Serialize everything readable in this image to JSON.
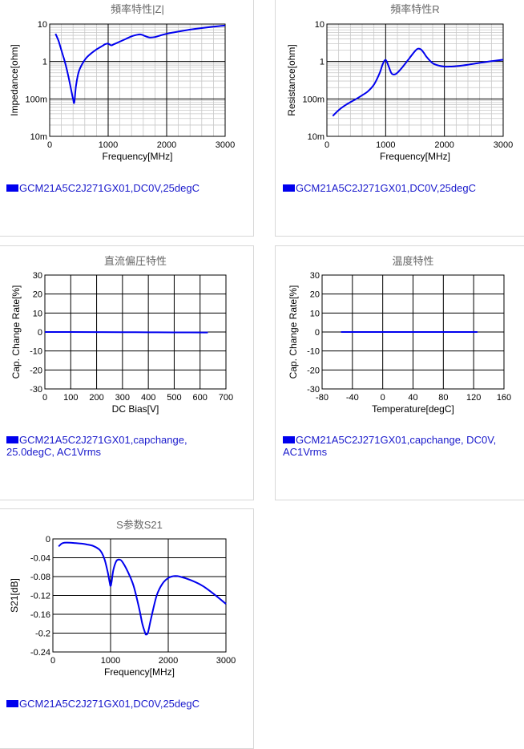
{
  "colors": {
    "series": "#0000ee",
    "legend_text": "#1a1acc",
    "grid_major": "#000000",
    "grid_minor": "#c8c8c8",
    "title": "#666666"
  },
  "chart_data": [
    {
      "id": "impedance",
      "type": "line",
      "title": "頻率特性|Z|",
      "xlabel": "Frequency[MHz]",
      "ylabel": "Impedance[ohm]",
      "xlim": [
        0,
        3000
      ],
      "ylim": [
        0.01,
        10
      ],
      "y_scale": "log",
      "x_ticks": [
        0,
        1000,
        2000,
        3000
      ],
      "x_tick_labels": [
        "0",
        "1000",
        "2000",
        "3000"
      ],
      "y_ticks": [
        0.01,
        0.1,
        1,
        10
      ],
      "y_tick_labels": [
        "10m",
        "100m",
        "1",
        "10"
      ],
      "grid": true,
      "legend": "GCM21A5C2J271GX01,DC0V,25degC",
      "series": [
        {
          "x": [
            100,
            150,
            200,
            250,
            300,
            350,
            380,
            400,
            420,
            450,
            500,
            600,
            700,
            800,
            900,
            950,
            1000,
            1050,
            1100,
            1200,
            1300,
            1400,
            1500,
            1550,
            1600,
            1700,
            1800,
            1900,
            2000,
            2200,
            2400,
            2600,
            2800,
            3000
          ],
          "y": [
            5.5,
            3.6,
            2.0,
            1.1,
            0.55,
            0.24,
            0.14,
            0.1,
            0.08,
            0.22,
            0.55,
            1.1,
            1.6,
            2.1,
            2.6,
            2.9,
            3.0,
            2.7,
            2.9,
            3.4,
            4.0,
            4.7,
            5.2,
            5.3,
            5.0,
            4.4,
            4.5,
            5.0,
            5.5,
            6.3,
            7.1,
            7.8,
            8.5,
            9.2
          ]
        }
      ]
    },
    {
      "id": "resistance",
      "type": "line",
      "title": "頻率特性R",
      "xlabel": "Frequency[MHz]",
      "ylabel": "Resistance[ohm]",
      "xlim": [
        0,
        3000
      ],
      "ylim": [
        0.01,
        10
      ],
      "y_scale": "log",
      "x_ticks": [
        0,
        1000,
        2000,
        3000
      ],
      "x_tick_labels": [
        "0",
        "1000",
        "2000",
        "3000"
      ],
      "y_ticks": [
        0.01,
        0.1,
        1,
        10
      ],
      "y_tick_labels": [
        "10m",
        "100m",
        "1",
        "10"
      ],
      "grid": true,
      "legend": "GCM21A5C2J271GX01,DC0V,25degC",
      "series": [
        {
          "x": [
            100,
            200,
            300,
            400,
            500,
            600,
            700,
            800,
            900,
            950,
            1000,
            1050,
            1100,
            1150,
            1200,
            1300,
            1400,
            1500,
            1550,
            1600,
            1650,
            1700,
            1800,
            1900,
            2000,
            2100,
            2200,
            2400,
            2600,
            2800,
            3000
          ],
          "y": [
            0.035,
            0.05,
            0.066,
            0.082,
            0.1,
            0.125,
            0.16,
            0.24,
            0.5,
            0.85,
            1.1,
            0.75,
            0.48,
            0.45,
            0.5,
            0.75,
            1.2,
            1.9,
            2.2,
            2.1,
            1.7,
            1.3,
            0.9,
            0.78,
            0.73,
            0.73,
            0.75,
            0.82,
            0.92,
            1.02,
            1.12
          ]
        }
      ]
    },
    {
      "id": "dcbias",
      "type": "line",
      "title": "直流偏圧特性",
      "xlabel": "DC Bias[V]",
      "ylabel": "Cap. Change Rate[%]",
      "xlim": [
        0,
        700
      ],
      "ylim": [
        -30,
        30
      ],
      "x_ticks": [
        0,
        100,
        200,
        300,
        400,
        500,
        600,
        700
      ],
      "x_tick_labels": [
        "0",
        "100",
        "200",
        "300",
        "400",
        "500",
        "600",
        "700"
      ],
      "y_ticks": [
        -30,
        -20,
        -10,
        0,
        10,
        20,
        30
      ],
      "y_tick_labels": [
        "-30",
        "-20",
        "-10",
        "0",
        "10",
        "20",
        "30"
      ],
      "grid": true,
      "legend": "GCM21A5C2J271GX01,capchange,\n25.0degC, AC1Vrms",
      "series": [
        {
          "x": [
            0,
            100,
            200,
            300,
            400,
            500,
            630
          ],
          "y": [
            0,
            0,
            -0.05,
            -0.1,
            -0.15,
            -0.2,
            -0.25
          ]
        }
      ]
    },
    {
      "id": "temperature",
      "type": "line",
      "title": "温度特性",
      "xlabel": "Temperature[degC]",
      "ylabel": "Cap. Change Rate[%]",
      "xlim": [
        -80,
        160
      ],
      "ylim": [
        -30,
        30
      ],
      "x_ticks": [
        -80,
        -40,
        0,
        40,
        80,
        120,
        160
      ],
      "x_tick_labels": [
        "-80",
        "-40",
        "0",
        "40",
        "80",
        "120",
        "160"
      ],
      "y_ticks": [
        -30,
        -20,
        -10,
        0,
        10,
        20,
        30
      ],
      "y_tick_labels": [
        "-30",
        "-20",
        "-10",
        "0",
        "10",
        "20",
        "30"
      ],
      "grid": true,
      "legend": "GCM21A5C2J271GX01,capchange, DC0V,\nAC1Vrms",
      "series": [
        {
          "x": [
            -55,
            -25,
            0,
            25,
            50,
            85,
            125
          ],
          "y": [
            0,
            0,
            0,
            0,
            0,
            0,
            0
          ]
        }
      ]
    },
    {
      "id": "s21",
      "type": "line",
      "title": "S参数S21",
      "xlabel": "Frequency[MHz]",
      "ylabel": "S21[dB]",
      "xlim": [
        0,
        3000
      ],
      "ylim": [
        -0.24,
        0
      ],
      "x_ticks": [
        0,
        1000,
        2000,
        3000
      ],
      "x_tick_labels": [
        "0",
        "1000",
        "2000",
        "3000"
      ],
      "y_ticks": [
        -0.24,
        -0.2,
        -0.16,
        -0.12,
        -0.08,
        -0.04,
        0
      ],
      "y_tick_labels": [
        "-0.24",
        "-0.2",
        "-0.16",
        "-0.12",
        "-0.08",
        "-0.04",
        "0"
      ],
      "grid": true,
      "legend": "GCM21A5C2J271GX01,DC0V,25degC",
      "series": [
        {
          "x": [
            100,
            150,
            200,
            300,
            400,
            500,
            600,
            700,
            800,
            850,
            900,
            950,
            980,
            1000,
            1020,
            1050,
            1100,
            1150,
            1200,
            1300,
            1400,
            1500,
            1550,
            1600,
            1620,
            1650,
            1700,
            1800,
            1900,
            2000,
            2100,
            2200,
            2400,
            2600,
            2800,
            3000
          ],
          "y": [
            -0.016,
            -0.01,
            -0.008,
            -0.008,
            -0.009,
            -0.01,
            -0.012,
            -0.015,
            -0.022,
            -0.03,
            -0.045,
            -0.07,
            -0.09,
            -0.1,
            -0.09,
            -0.065,
            -0.047,
            -0.044,
            -0.048,
            -0.07,
            -0.1,
            -0.15,
            -0.18,
            -0.2,
            -0.203,
            -0.198,
            -0.17,
            -0.12,
            -0.095,
            -0.083,
            -0.079,
            -0.08,
            -0.088,
            -0.1,
            -0.118,
            -0.138
          ]
        }
      ]
    }
  ]
}
